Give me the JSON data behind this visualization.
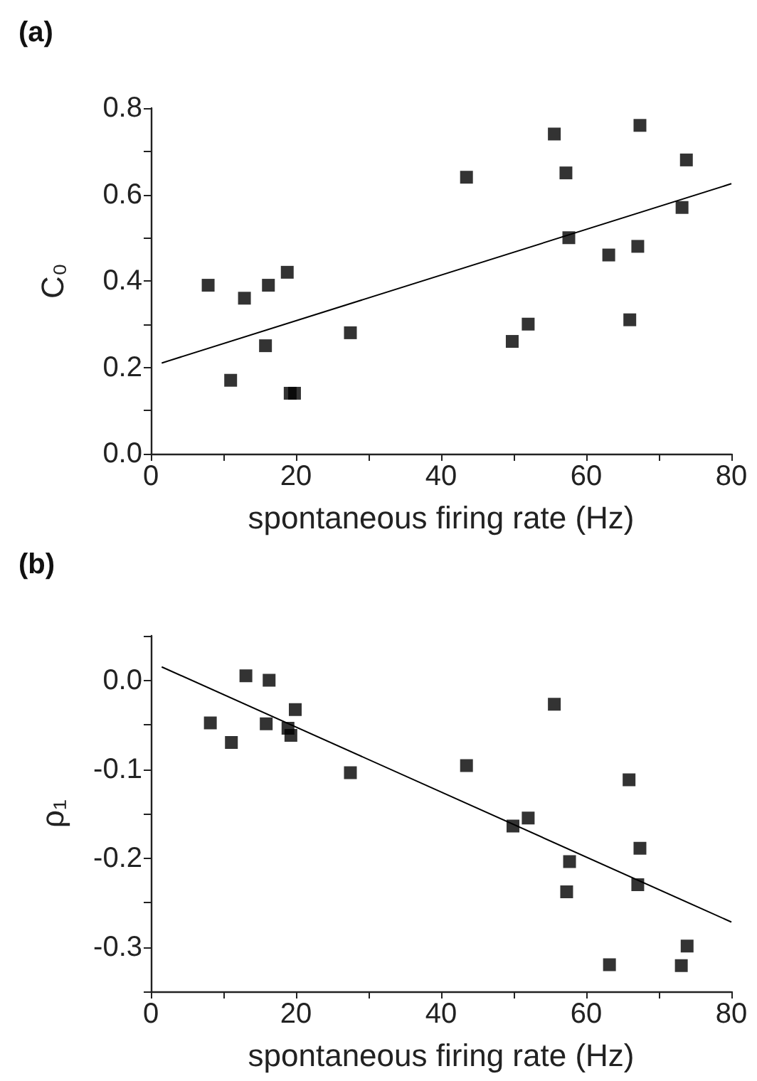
{
  "chart_data": [
    {
      "type": "scatter",
      "title": "(a)",
      "xlabel": "spontaneous firing rate (Hz)",
      "ylabel": "C₀",
      "marker": "square",
      "grid": false,
      "xlim": [
        0,
        80
      ],
      "xticks": [
        0,
        {
          "value": 10,
          "label": null
        },
        20,
        {
          "value": 30,
          "label": null
        },
        40,
        {
          "value": 50,
          "label": null
        },
        60,
        {
          "value": 70,
          "label": null
        },
        80
      ],
      "ylim": [
        0,
        0.8
      ],
      "yticks": [
        {
          "value": 0,
          "label": "0.0"
        },
        {
          "value": 0.1,
          "label": null
        },
        0.2,
        {
          "value": 0.3,
          "label": null
        },
        0.4,
        {
          "value": 0.5,
          "label": null
        },
        0.6,
        {
          "value": 0.7,
          "label": null
        },
        0.8
      ],
      "series": [
        {
          "color": "#000000",
          "x": [
            7.9,
            11.0,
            12.9,
            16.2,
            15.8,
            18.8,
            19.2,
            19.8,
            27.5,
            43.5,
            49.8,
            52.0,
            55.6,
            57.2,
            57.6,
            63.1,
            66.0,
            67.1,
            67.4,
            73.2,
            73.8
          ],
          "values": [
            0.39,
            0.17,
            0.36,
            0.39,
            0.25,
            0.42,
            0.14,
            0.14,
            0.28,
            0.64,
            0.26,
            0.3,
            0.74,
            0.65,
            0.5,
            0.46,
            0.31,
            0.48,
            0.76,
            0.57,
            0.68
          ]
        },
        {
          "type": "line",
          "marker": "none",
          "color": "#000000",
          "x": [
            1.5,
            80
          ],
          "values": [
            0.21,
            0.625
          ]
        }
      ]
    },
    {
      "type": "scatter",
      "title": "(b)",
      "xlabel": "spontaneous firing rate (Hz)",
      "ylabel": "ρ₁",
      "marker": "square",
      "grid": false,
      "xlim": [
        0,
        80
      ],
      "xticks": [
        0,
        {
          "value": 10,
          "label": null
        },
        20,
        {
          "value": 30,
          "label": null
        },
        40,
        {
          "value": 50,
          "label": null
        },
        60,
        {
          "value": 70,
          "label": null
        },
        80
      ],
      "ylim": [
        -0.35,
        0.05
      ],
      "yticks": [
        {
          "value": 0.05,
          "label": null
        },
        {
          "value": 0,
          "label": "0.0"
        },
        {
          "value": -0.05,
          "label": null
        },
        -0.1,
        {
          "value": -0.15,
          "label": null
        },
        -0.2,
        {
          "value": -0.25,
          "label": null
        },
        -0.3,
        {
          "value": -0.35,
          "label": null
        }
      ],
      "series": [
        {
          "color": "#000000",
          "x": [
            8.2,
            11.1,
            13.1,
            15.9,
            16.3,
            18.9,
            19.3,
            19.9,
            27.5,
            43.5,
            49.9,
            52.0,
            55.6,
            57.3,
            57.7,
            63.2,
            65.9,
            67.1,
            67.4,
            73.1,
            73.9
          ],
          "values": [
            -0.048,
            -0.07,
            0.005,
            -0.049,
            0.0,
            -0.054,
            -0.062,
            -0.033,
            -0.104,
            -0.096,
            -0.164,
            -0.155,
            -0.027,
            -0.238,
            -0.204,
            -0.32,
            -0.112,
            -0.23,
            -0.189,
            -0.321,
            -0.299
          ]
        },
        {
          "type": "line",
          "marker": "none",
          "color": "#000000",
          "x": [
            1.5,
            80
          ],
          "values": [
            0.015,
            -0.272
          ]
        }
      ]
    }
  ]
}
